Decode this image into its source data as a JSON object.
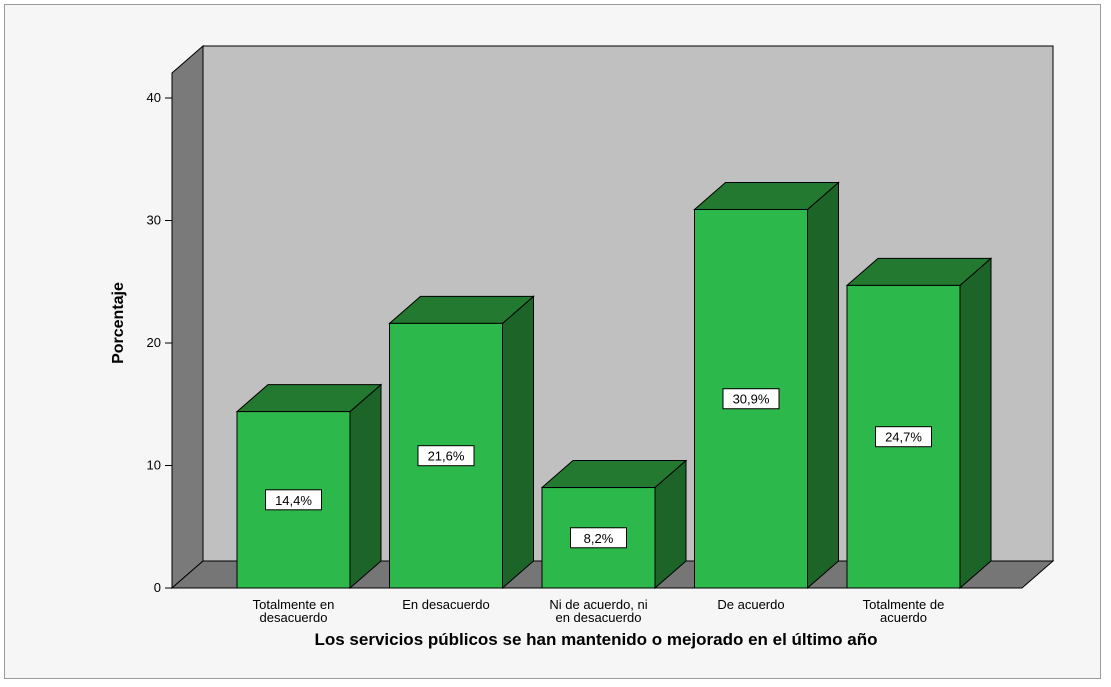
{
  "chart_data": {
    "type": "bar",
    "style": "3d",
    "categories": [
      [
        "Totalmente en",
        "desacuerdo"
      ],
      [
        "En desacuerdo"
      ],
      [
        "Ni de acuerdo, ni",
        "en desacuerdo"
      ],
      [
        "De acuerdo"
      ],
      [
        "Totalmente de",
        "acuerdo"
      ]
    ],
    "values": [
      14.4,
      21.6,
      8.2,
      30.9,
      24.7
    ],
    "data_labels": [
      "14,4%",
      "21,6%",
      "8,2%",
      "30,9%",
      "24,7%"
    ],
    "xlabel": "Los servicios públicos se han mantenido o mejorado en el último año",
    "ylabel": "Porcentaje",
    "ylim": [
      0,
      40
    ],
    "yticks": [
      0,
      10,
      20,
      30,
      40
    ],
    "grid": false,
    "legend": "none",
    "colors": {
      "bar_front": "#2db84b",
      "bar_top": "#22792f",
      "bar_side": "#1d6428",
      "wall_back": "#c0c0c0",
      "wall_left": "#7a7a7a",
      "floor": "#767676",
      "frame_bg": "#f6f6f6"
    }
  }
}
